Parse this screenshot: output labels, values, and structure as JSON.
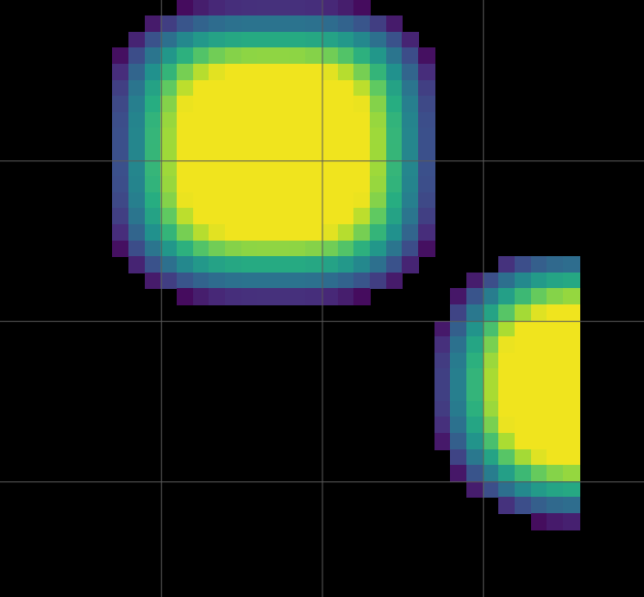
{
  "chart_data": {
    "type": "heatmap",
    "title": "",
    "xlabel": "",
    "ylabel": "",
    "colormap": "viridis",
    "background": "#000000",
    "grid": true,
    "grid_color": "#5a5a5a",
    "grid_x": [
      1,
      2,
      3
    ],
    "grid_y": [
      1,
      2,
      3
    ],
    "xlim": [
      0,
      4
    ],
    "ylim": [
      0,
      3.72
    ],
    "grid_resolution": 0.1,
    "blobs": [
      {
        "name": "upper-left-blob",
        "cx": 1.7,
        "cy": 0.95,
        "rx": 1.05,
        "ry": 0.95,
        "shape_power": 3.2,
        "peak": 1.0
      },
      {
        "name": "lower-right-blob",
        "cx": 3.63,
        "cy": 2.4,
        "rx": 0.95,
        "ry": 0.88,
        "shape_power": 2.4,
        "peak": 1.0,
        "clip_xmax": 3.64,
        "clip_ymin": 1.56,
        "clip_ymax": 3.26
      }
    ]
  }
}
